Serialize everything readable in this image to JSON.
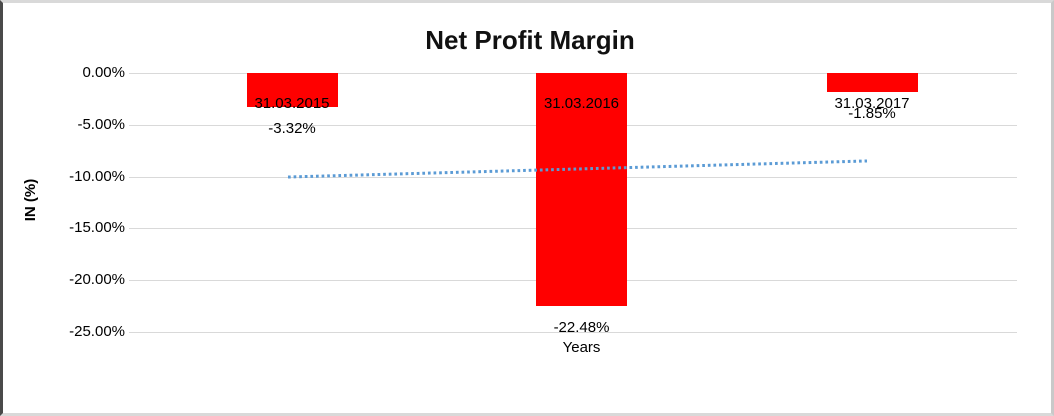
{
  "chart_data": {
    "type": "bar",
    "title": "Net Profit Margin",
    "categories": [
      "31.03.2015",
      "31.03.2016",
      "31.03.2017"
    ],
    "series": [
      {
        "name": "Net Profit Margin",
        "values": [
          -3.32,
          -22.48,
          -1.85
        ]
      }
    ],
    "data_labels": [
      "-3.32%",
      "-22.48%",
      "-1.85%"
    ],
    "xlabel": "Years",
    "ylabel": "IN (%)",
    "ylim": [
      -27.5,
      0
    ],
    "y_tick_values": [
      0,
      -5,
      -10,
      -15,
      -20,
      -25
    ],
    "y_tick_labels": [
      "0.00%",
      "-5.00%",
      "-10.00%",
      "-15.00%",
      "-20.00%",
      "-25.00%"
    ],
    "grid": true,
    "legend": false,
    "bar_color": "#ff0000",
    "gridline_color": "#d9d9d9",
    "text_color": "#000000",
    "trendline": {
      "type": "linear",
      "style": "dotted",
      "color": "#5b9bd5",
      "start_value": -10.04,
      "end_value": -8.49
    }
  }
}
